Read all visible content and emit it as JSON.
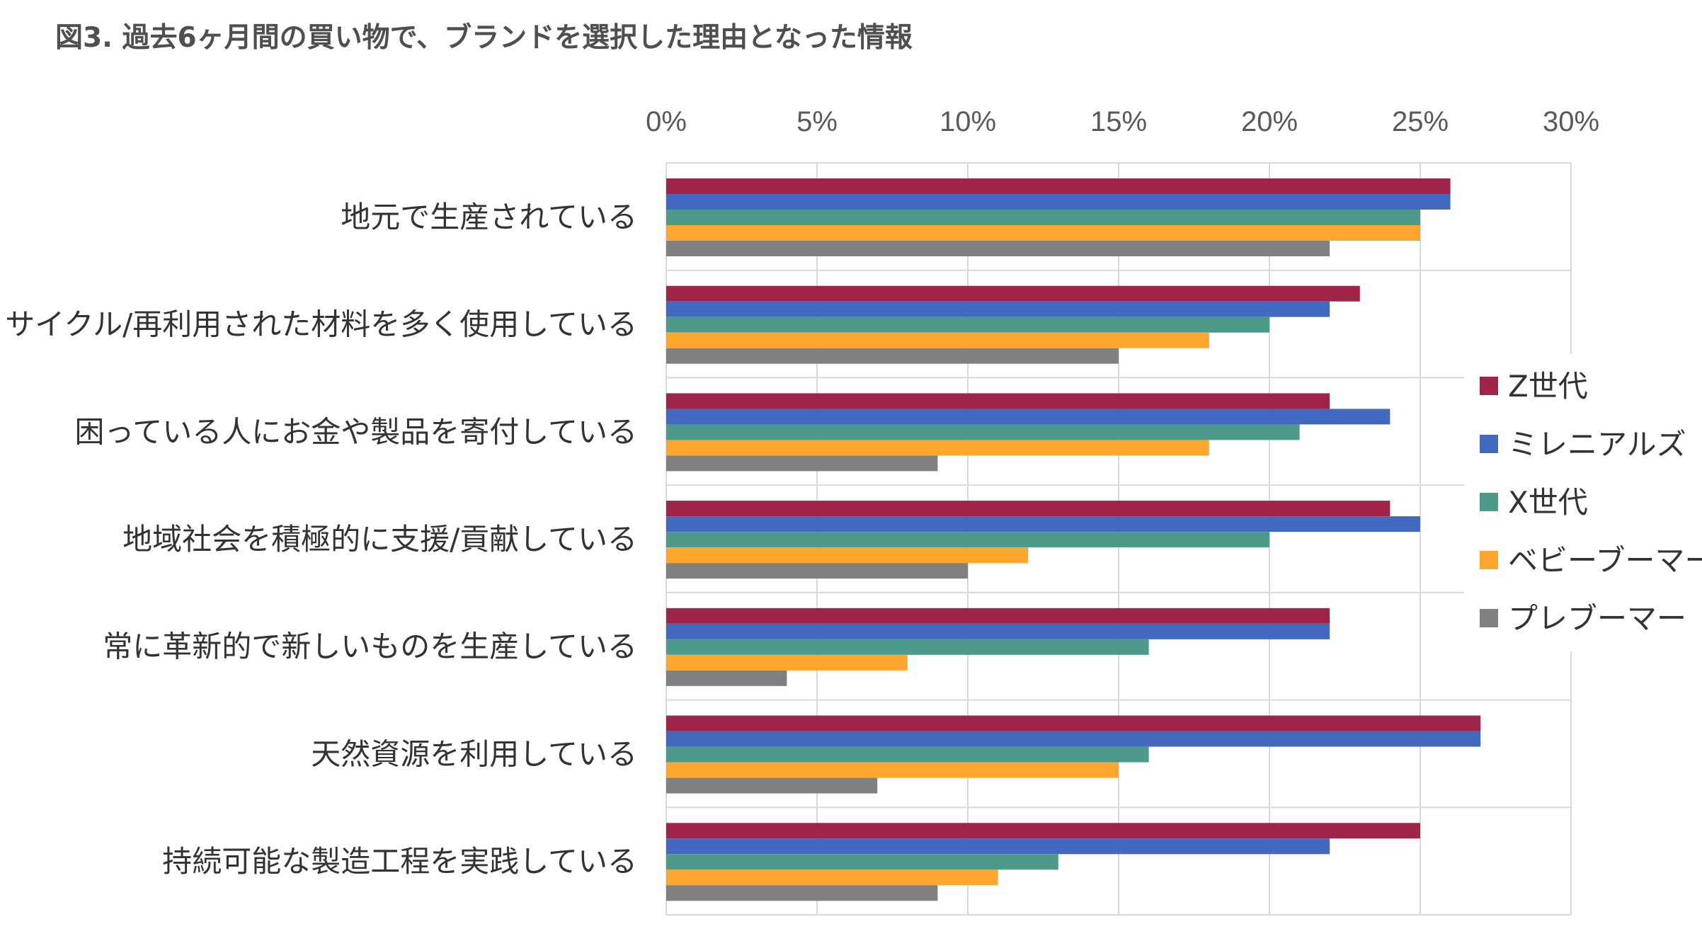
{
  "chart_data": {
    "type": "bar",
    "orientation": "horizontal",
    "title": "図3. 過去6ヶ月間の買い物で、ブランドを選択した理由となった情報",
    "xlabel": "",
    "ylabel": "",
    "xlim": [
      0,
      30
    ],
    "x_ticks": [
      "0%",
      "5%",
      "10%",
      "15%",
      "20%",
      "25%",
      "30%"
    ],
    "grid": "vertical",
    "legend_position": "right",
    "categories": [
      "地元で生産されている",
      "リサイクル/再利用された材料を多く使用している",
      "困っている人にお金や製品を寄付している",
      "地域社会を積極的に支援/貢献している",
      "常に革新的で新しいものを生産している",
      "天然資源を利用している",
      "持続可能な製造工程を実践している"
    ],
    "series": [
      {
        "name": "Z世代",
        "color": "#9e2448",
        "values": [
          26,
          23,
          22,
          24,
          22,
          27,
          25
        ]
      },
      {
        "name": "ミレニアルズ",
        "color": "#4268c0",
        "values": [
          26,
          22,
          24,
          25,
          22,
          27,
          22
        ]
      },
      {
        "name": "X世代",
        "color": "#4e9a8a",
        "values": [
          25,
          20,
          21,
          20,
          16,
          16,
          13
        ]
      },
      {
        "name": "ベビーブーマー",
        "color": "#ffa62f",
        "values": [
          25,
          18,
          18,
          12,
          8,
          15,
          11
        ]
      },
      {
        "name": "プレブーマー",
        "color": "#808080",
        "values": [
          22,
          15,
          9,
          10,
          4,
          7,
          9
        ]
      }
    ]
  }
}
